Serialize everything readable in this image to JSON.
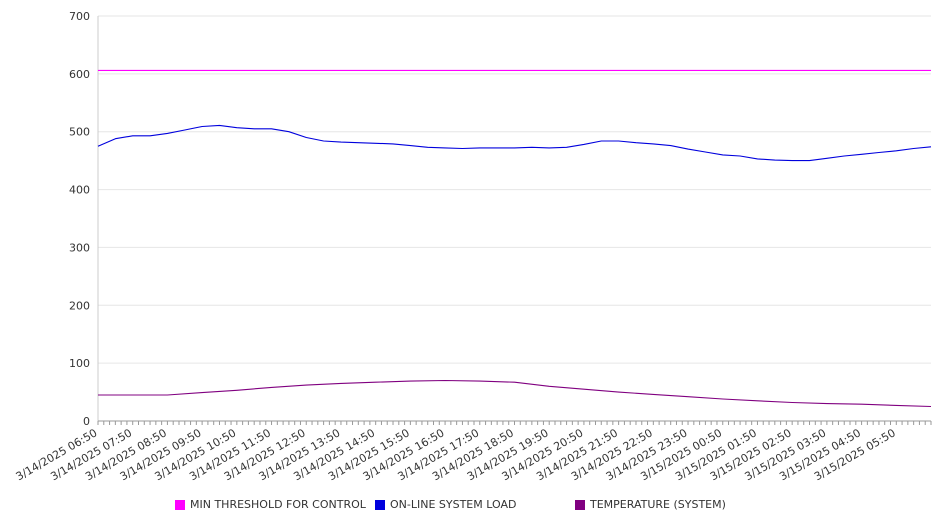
{
  "chart_data": {
    "type": "line",
    "title": "",
    "xlabel": "",
    "ylabel": "",
    "ylim": [
      0,
      700
    ],
    "yticks": [
      0,
      100,
      200,
      300,
      400,
      500,
      600,
      700
    ],
    "grid": true,
    "legend_position": "bottom",
    "x_start": "3/14/2025 06:50",
    "x_end": "3/15/2025 06:50",
    "x_tick_labels": [
      "3/14/2025 06:50",
      "3/14/2025 07:50",
      "3/14/2025 08:50",
      "3/14/2025 09:50",
      "3/14/2025 10:50",
      "3/14/2025 11:50",
      "3/14/2025 12:50",
      "3/14/2025 13:50",
      "3/14/2025 14:50",
      "3/14/2025 15:50",
      "3/14/2025 16:50",
      "3/14/2025 17:50",
      "3/14/2025 18:50",
      "3/14/2025 19:50",
      "3/14/2025 20:50",
      "3/14/2025 21:50",
      "3/14/2025 22:50",
      "3/14/2025 23:50",
      "3/15/2025 00:50",
      "3/15/2025 01:50",
      "3/15/2025 02:50",
      "3/15/2025 03:50",
      "3/15/2025 04:50",
      "3/15/2025 05:50"
    ],
    "series": [
      {
        "name": "MIN THRESHOLD FOR CONTROL",
        "color": "#ff00ff",
        "x": [
          "3/14/2025 06:50",
          "3/15/2025 06:50"
        ],
        "values": [
          606,
          606
        ]
      },
      {
        "name": "ON-LINE SYSTEM LOAD",
        "color": "#0000dd",
        "x": [
          "3/14/2025 06:50",
          "3/14/2025 07:20",
          "3/14/2025 07:50",
          "3/14/2025 08:20",
          "3/14/2025 08:50",
          "3/14/2025 09:20",
          "3/14/2025 09:50",
          "3/14/2025 10:20",
          "3/14/2025 10:50",
          "3/14/2025 11:20",
          "3/14/2025 11:50",
          "3/14/2025 12:20",
          "3/14/2025 12:50",
          "3/14/2025 13:20",
          "3/14/2025 13:50",
          "3/14/2025 14:20",
          "3/14/2025 14:50",
          "3/14/2025 15:20",
          "3/14/2025 15:50",
          "3/14/2025 16:20",
          "3/14/2025 16:50",
          "3/14/2025 17:20",
          "3/14/2025 17:50",
          "3/14/2025 18:20",
          "3/14/2025 18:50",
          "3/14/2025 19:20",
          "3/14/2025 19:50",
          "3/14/2025 20:20",
          "3/14/2025 20:50",
          "3/14/2025 21:20",
          "3/14/2025 21:50",
          "3/14/2025 22:20",
          "3/14/2025 22:50",
          "3/14/2025 23:20",
          "3/14/2025 23:50",
          "3/15/2025 00:20",
          "3/15/2025 00:50",
          "3/15/2025 01:20",
          "3/15/2025 01:50",
          "3/15/2025 02:20",
          "3/15/2025 02:50",
          "3/15/2025 03:20",
          "3/15/2025 03:50",
          "3/15/2025 04:20",
          "3/15/2025 04:50",
          "3/15/2025 05:20",
          "3/15/2025 05:50",
          "3/15/2025 06:20",
          "3/15/2025 06:50"
        ],
        "values": [
          475,
          488,
          493,
          493,
          497,
          503,
          509,
          511,
          507,
          505,
          505,
          500,
          490,
          484,
          482,
          481,
          480,
          479,
          476,
          473,
          472,
          471,
          472,
          472,
          472,
          473,
          472,
          473,
          478,
          484,
          484,
          481,
          479,
          476,
          470,
          465,
          460,
          458,
          453,
          451,
          450,
          450,
          454,
          458,
          461,
          464,
          467,
          471,
          474
        ]
      },
      {
        "name": "TEMPERATURE (SYSTEM)",
        "color": "#800080",
        "x": [
          "3/14/2025 06:50",
          "3/14/2025 08:50",
          "3/14/2025 09:50",
          "3/14/2025 10:50",
          "3/14/2025 11:50",
          "3/14/2025 12:50",
          "3/14/2025 13:50",
          "3/14/2025 14:50",
          "3/14/2025 15:50",
          "3/14/2025 16:50",
          "3/14/2025 17:50",
          "3/14/2025 18:50",
          "3/14/2025 19:50",
          "3/14/2025 20:50",
          "3/14/2025 21:50",
          "3/14/2025 22:50",
          "3/14/2025 23:50",
          "3/15/2025 00:50",
          "3/15/2025 01:50",
          "3/15/2025 02:50",
          "3/15/2025 03:50",
          "3/15/2025 04:50",
          "3/15/2025 05:50",
          "3/15/2025 06:50"
        ],
        "values": [
          45,
          45,
          49,
          53,
          58,
          62,
          65,
          67,
          69,
          70,
          69,
          67,
          60,
          55,
          50,
          46,
          42,
          38,
          35,
          32,
          30,
          29,
          27,
          25
        ]
      }
    ]
  }
}
